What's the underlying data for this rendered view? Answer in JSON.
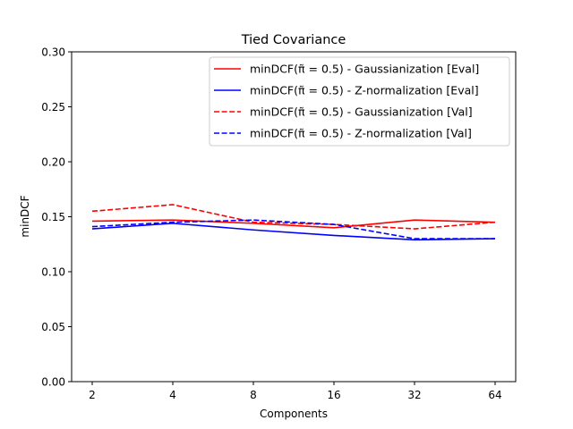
{
  "chart_data": {
    "type": "line",
    "title": "Tied Covariance",
    "xlabel": "Components",
    "ylabel": "minDCF",
    "categories": [
      "2",
      "4",
      "8",
      "16",
      "32",
      "64"
    ],
    "ylim": [
      0.0,
      0.3
    ],
    "yticks": [
      "0.00",
      "0.05",
      "0.10",
      "0.15",
      "0.20",
      "0.25",
      "0.30"
    ],
    "grid": false,
    "legend_position": "top-right",
    "series": [
      {
        "name": "minDCF(π̃ = 0.5) - Gaussianization [Eval]",
        "color": "#ff0000",
        "dash": "solid",
        "values": [
          0.146,
          0.147,
          0.144,
          0.14,
          0.147,
          0.145
        ]
      },
      {
        "name": "minDCF(π̃ = 0.5) - Z-normalization [Eval]",
        "color": "#0000ff",
        "dash": "solid",
        "values": [
          0.139,
          0.144,
          0.138,
          0.133,
          0.129,
          0.13
        ]
      },
      {
        "name": "minDCF(π̃ = 0.5) - Gaussianization [Val]",
        "color": "#ff0000",
        "dash": "dashed",
        "values": [
          0.155,
          0.161,
          0.145,
          0.143,
          0.139,
          0.145
        ]
      },
      {
        "name": "minDCF(π̃ = 0.5) - Z-normalization [Val]",
        "color": "#0000ff",
        "dash": "dashed",
        "values": [
          0.141,
          0.145,
          0.147,
          0.143,
          0.13,
          0.13
        ]
      }
    ]
  }
}
